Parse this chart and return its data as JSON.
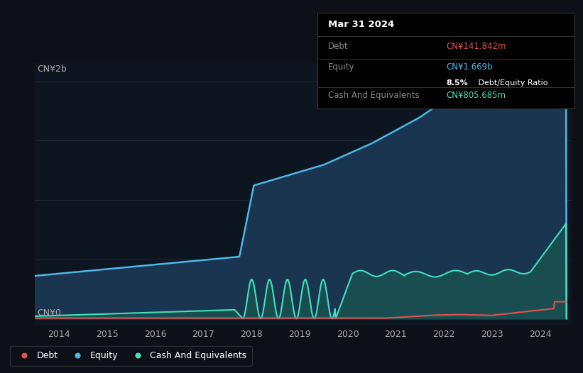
{
  "bg_color": "#0d1117",
  "plot_bg_color": "#0d1520",
  "title_date": "Mar 31 2024",
  "debt_label": "Debt",
  "debt_value": "CN¥141.842m",
  "debt_color": "#e05252",
  "equity_label": "Equity",
  "equity_value": "CN¥1.669b",
  "equity_color": "#4db8e8",
  "ratio_text": "8.5%",
  "ratio_text2": " Debt/Equity Ratio",
  "cash_label": "Cash And Equivalents",
  "cash_value": "CN¥805.685m",
  "cash_color": "#40e0c0",
  "y_label_top": "CN¥2b",
  "y_label_zero": "CN¥0",
  "x_ticks": [
    "2014",
    "2015",
    "2016",
    "2017",
    "2018",
    "2019",
    "2020",
    "2021",
    "2022",
    "2023",
    "2024"
  ],
  "legend_debt": "Debt",
  "legend_equity": "Equity",
  "legend_cash": "Cash And Equivalents",
  "grid_color": "#1e2d3d",
  "line_color_equity": "#4db8e8",
  "line_color_cash": "#40e0c0",
  "line_color_debt": "#e05252",
  "fill_color_equity": "#1a3550",
  "fill_color_cash": "#1a5050",
  "tick_color": "#aaaaaa",
  "label_color": "#888888",
  "white": "#ffffff"
}
